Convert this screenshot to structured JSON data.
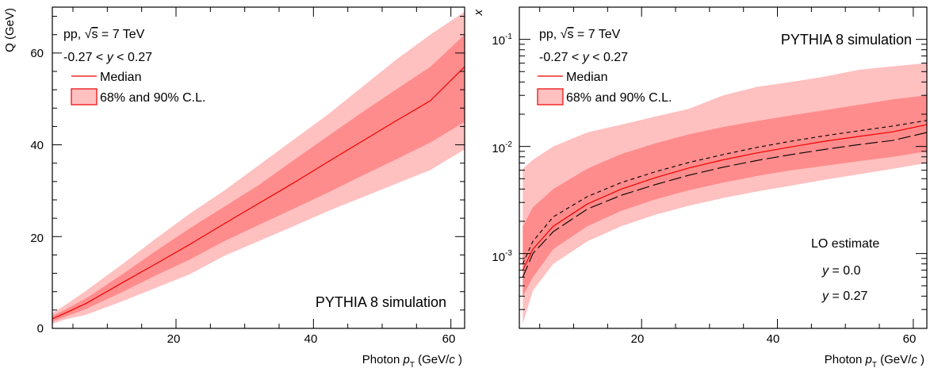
{
  "colors": {
    "band90": "#ffc0c0",
    "band68": "#ff8c8c",
    "median": "#ee0000",
    "lo": "#000000"
  },
  "chart_data": [
    {
      "type": "area",
      "xlabel_text": "Photon ",
      "xlabel_var": "p",
      "xlabel_sub": "T",
      "xlabel_unit_pre": " (GeV/",
      "xlabel_unit_var": "c",
      "xlabel_unit_post": " )",
      "ylabel": "Q (GeV)",
      "xlim": [
        2,
        62
      ],
      "ylim": [
        0,
        70
      ],
      "yscale": "linear",
      "xticks": [
        20,
        40,
        60
      ],
      "xtick_labels": [
        "20",
        "40",
        "60"
      ],
      "yticks": [
        0,
        20,
        40,
        60
      ],
      "ytick_labels": [
        "0",
        "20",
        "40",
        "60"
      ],
      "text_lines": {
        "energy_pre": "pp, ",
        "energy_sqrt": "√",
        "energy_s": "s",
        "energy_post": " = 7 TeV",
        "rapidity_pre": "-0.27 < ",
        "rapidity_var": "y",
        "rapidity_post": " < 0.27",
        "sim_label": "PYTHIA 8 simulation"
      },
      "legend": {
        "median": "Median",
        "bands": "68% and 90% C.L."
      },
      "x": [
        2,
        4,
        7,
        12,
        17,
        22,
        27,
        32,
        37,
        42,
        47,
        52,
        57,
        62
      ],
      "series": [
        {
          "name": "Median",
          "values": [
            2.1,
            3.4,
            5.5,
            9.8,
            14.0,
            18.3,
            22.8,
            27.2,
            31.6,
            36.2,
            40.7,
            45.2,
            49.6,
            57.0
          ]
        },
        {
          "name": "68% C.L. low",
          "values": [
            1.5,
            2.6,
            4.3,
            7.8,
            11.5,
            15.0,
            19.0,
            22.5,
            26.0,
            29.5,
            33.2,
            36.8,
            40.5,
            45.0
          ]
        },
        {
          "name": "68% C.L. high",
          "values": [
            2.7,
            4.2,
            6.6,
            11.6,
            16.8,
            21.8,
            26.5,
            31.2,
            36.5,
            41.8,
            47.0,
            52.0,
            57.0,
            64.0
          ]
        },
        {
          "name": "90% C.L. low",
          "values": [
            1.0,
            2.0,
            3.0,
            5.8,
            8.8,
            11.8,
            15.8,
            19.0,
            22.2,
            25.5,
            28.5,
            31.5,
            34.5,
            39.0
          ]
        },
        {
          "name": "90% C.L. high",
          "values": [
            3.3,
            5.2,
            8.3,
            13.8,
            19.5,
            25.0,
            30.0,
            35.5,
            41.0,
            46.5,
            52.5,
            58.5,
            64.0,
            69.0
          ]
        }
      ]
    },
    {
      "type": "area",
      "xlabel_text": "Photon ",
      "xlabel_var": "p",
      "xlabel_sub": "T",
      "xlabel_unit_pre": " (GeV/",
      "xlabel_unit_var": "c",
      "xlabel_unit_post": " )",
      "ylabel": "x",
      "xlim": [
        2,
        62
      ],
      "ylim": [
        0.0002,
        0.2
      ],
      "yscale": "log",
      "xticks": [
        20,
        40,
        60
      ],
      "xtick_labels": [
        "20",
        "40",
        "60"
      ],
      "yticks": [
        0.001,
        0.01,
        0.1
      ],
      "ytick_base": "10",
      "ytick_exps": [
        "-3",
        "-2",
        "-1"
      ],
      "text_lines": {
        "energy_pre": "pp, ",
        "energy_sqrt": "√",
        "energy_s": "s",
        "energy_post": " = 7 TeV",
        "rapidity_pre": "-0.27 < ",
        "rapidity_var": "y",
        "rapidity_post": " < 0.27",
        "sim_label": "PYTHIA 8 simulation"
      },
      "legend": {
        "median": "Median",
        "bands": "68% and 90% C.L.",
        "lo_title": "LO estimate",
        "lo1_var": "y",
        "lo1_post": " = 0.0",
        "lo2_var": "y",
        "lo2_post": " = 0.27"
      },
      "x": [
        2.5,
        4,
        7,
        12,
        17,
        22,
        27,
        32,
        37,
        42,
        47,
        52,
        57,
        62
      ],
      "series": [
        {
          "name": "Median",
          "values": [
            0.0007,
            0.0011,
            0.0018,
            0.0029,
            0.004,
            0.0051,
            0.0063,
            0.0075,
            0.0087,
            0.0099,
            0.0112,
            0.0124,
            0.0137,
            0.016
          ]
        },
        {
          "name": "68% C.L. low",
          "values": [
            0.0004,
            0.0006,
            0.0011,
            0.0018,
            0.0025,
            0.0032,
            0.0039,
            0.0046,
            0.0053,
            0.006,
            0.0066,
            0.0073,
            0.008,
            0.009
          ]
        },
        {
          "name": "68% C.L. high",
          "values": [
            0.0018,
            0.0027,
            0.004,
            0.0062,
            0.0085,
            0.0107,
            0.013,
            0.0152,
            0.0173,
            0.0195,
            0.0218,
            0.0245,
            0.0275,
            0.03
          ]
        },
        {
          "name": "90% C.L. low",
          "values": [
            0.00022,
            0.00045,
            0.0008,
            0.0013,
            0.0018,
            0.0023,
            0.0028,
            0.0033,
            0.0038,
            0.0043,
            0.0049,
            0.0055,
            0.0062,
            0.007
          ]
        },
        {
          "name": "90% C.L. high",
          "values": [
            0.0062,
            0.0075,
            0.01,
            0.0135,
            0.016,
            0.019,
            0.0225,
            0.03,
            0.036,
            0.04,
            0.045,
            0.052,
            0.056,
            0.06
          ]
        },
        {
          "name": "y = 0.0",
          "values": [
            0.0008,
            0.0013,
            0.0022,
            0.0034,
            0.0046,
            0.0058,
            0.0071,
            0.0084,
            0.0098,
            0.0112,
            0.0126,
            0.014,
            0.0155,
            0.0175
          ]
        },
        {
          "name": "y = 0.27",
          "values": [
            0.0006,
            0.001,
            0.0016,
            0.0026,
            0.0035,
            0.0044,
            0.0054,
            0.0064,
            0.0074,
            0.0084,
            0.0094,
            0.0104,
            0.0114,
            0.0135
          ]
        }
      ]
    }
  ]
}
